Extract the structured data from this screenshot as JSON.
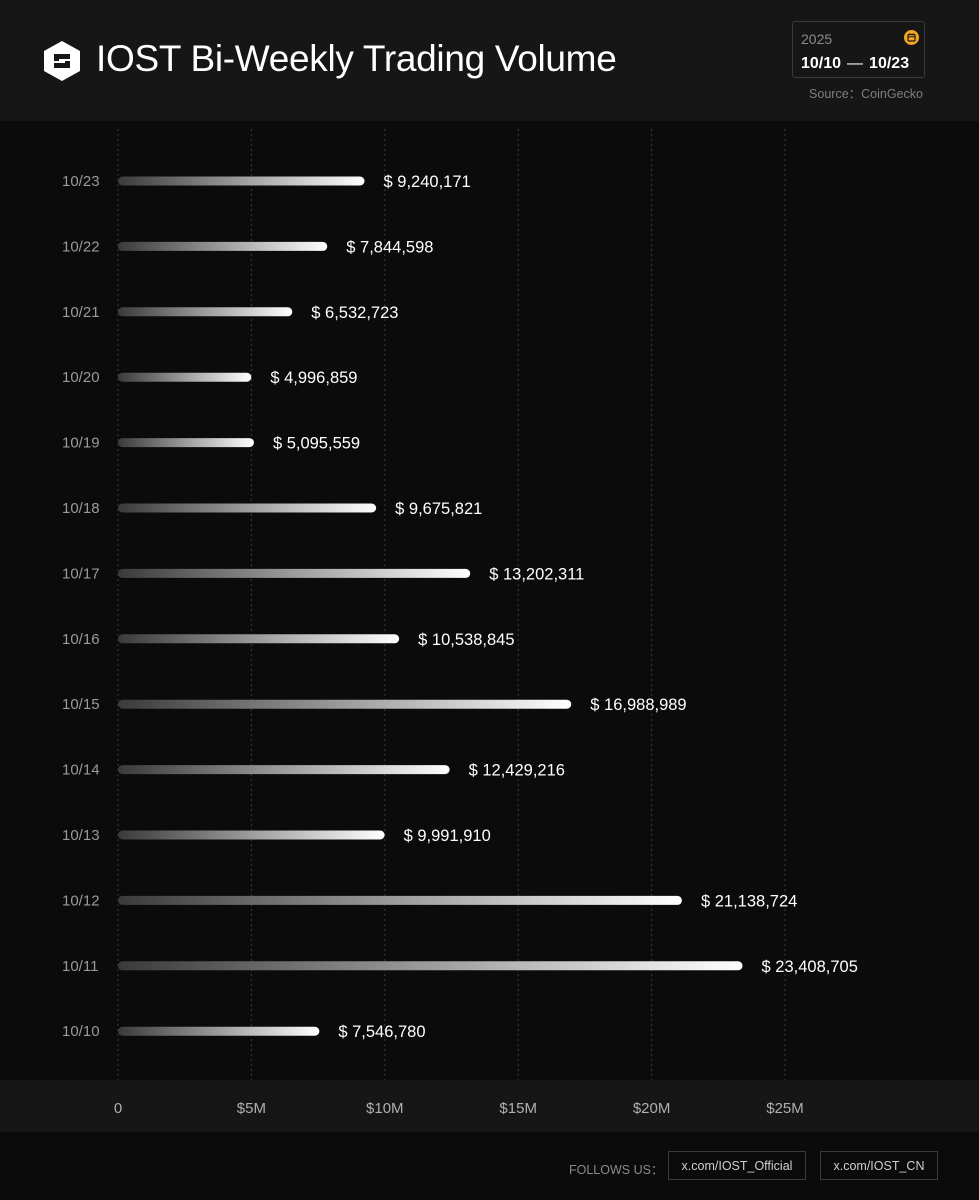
{
  "header": {
    "title": "IOST Bi-Weekly Trading Volume",
    "year": "2025",
    "range_start": "10/10",
    "range_sep": "—",
    "range_end": "10/23",
    "source": "Source：CoinGecko",
    "logo_icon": "iost-logo-icon",
    "calendar_icon": "calendar-icon",
    "accent_color": "#f5a623"
  },
  "footer": {
    "follow_label": "FOLLOWS US：",
    "links": [
      "x.com/IOST_Official",
      "x.com/IOST_CN"
    ]
  },
  "chart_data": {
    "type": "bar",
    "orientation": "horizontal",
    "title": "IOST Bi-Weekly Trading Volume",
    "categories": [
      "10/23",
      "10/22",
      "10/21",
      "10/20",
      "10/19",
      "10/18",
      "10/17",
      "10/16",
      "10/15",
      "10/14",
      "10/13",
      "10/12",
      "10/11",
      "10/10"
    ],
    "values": [
      9240171,
      7844598,
      6532723,
      4996859,
      5095559,
      9675821,
      13202311,
      10538845,
      16988989,
      12429216,
      9991910,
      21138724,
      23408705,
      7546780
    ],
    "value_labels": [
      "$ 9,240,171",
      "$ 7,844,598",
      "$ 6,532,723",
      "$ 4,996,859",
      "$ 5,095,559",
      "$ 9,675,821",
      "$ 13,202,311",
      "$ 10,538,845",
      "$ 16,988,989",
      "$ 12,429,216",
      "$ 9,991,910",
      "$ 21,138,724",
      "$ 23,408,705",
      "$ 7,546,780"
    ],
    "x_ticks": [
      0,
      5000000,
      10000000,
      15000000,
      20000000,
      25000000
    ],
    "x_tick_labels": [
      "0",
      "$5M",
      "$10M",
      "$15M",
      "$20M",
      "$25M"
    ],
    "xlim": [
      0,
      25000000
    ],
    "grid": true,
    "bar_color_start": "#3a3a3a",
    "bar_color_end": "#ffffff"
  }
}
